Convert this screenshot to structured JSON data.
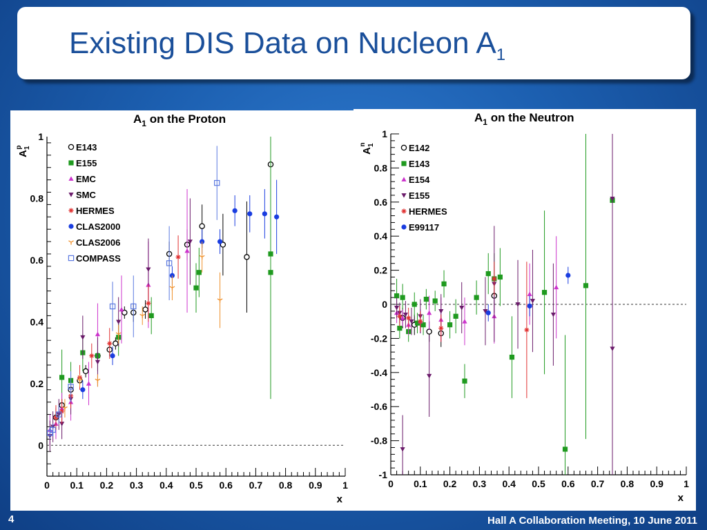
{
  "slide": {
    "title_main": "Existing DIS Data on Nucleon A",
    "title_sub": "1",
    "slide_number": "4",
    "footer": "Hall A Collaboration Meeting, 10 June 2011"
  },
  "colors": {
    "background": "#1c5fb0",
    "title_text": "#1a4f9a"
  },
  "chart_data": [
    {
      "type": "scatter",
      "title": "A1 on the Proton",
      "title_main": "A",
      "title_sub": "1",
      "title_rest": " on the Proton",
      "xlabel": "x",
      "ylabel": "A1p",
      "ylabel_main": "A",
      "ylabel_sub": "1",
      "ylabel_sup": "p",
      "xlim": [
        0,
        1
      ],
      "ylim": [
        -0.1,
        1.0
      ],
      "xticks": [
        "0",
        "0.1",
        "0.2",
        "0.3",
        "0.4",
        "0.5",
        "0.6",
        "0.7",
        "0.8",
        "0.9",
        "1"
      ],
      "yticks": [
        {
          "v": 0,
          "label": "0"
        },
        {
          "v": 0.2,
          "label": "0.2"
        },
        {
          "v": 0.4,
          "label": "0.4"
        },
        {
          "v": 0.6,
          "label": "0.6"
        },
        {
          "v": 0.8,
          "label": "0.8"
        },
        {
          "v": 1,
          "label": "1"
        }
      ],
      "reference_line": 0,
      "legend_position": "top-left",
      "series": [
        {
          "name": "E143",
          "marker": "circle-open",
          "color": "#000000",
          "points": [
            [
              0.03,
              0.09,
              0.03
            ],
            [
              0.05,
              0.13,
              0.02
            ],
            [
              0.08,
              0.18,
              0.02
            ],
            [
              0.11,
              0.21,
              0.02
            ],
            [
              0.13,
              0.24,
              0.02
            ],
            [
              0.17,
              0.29,
              0.02
            ],
            [
              0.21,
              0.31,
              0.02
            ],
            [
              0.23,
              0.33,
              0.02
            ],
            [
              0.26,
              0.43,
              0.02
            ],
            [
              0.29,
              0.43,
              0.03
            ],
            [
              0.33,
              0.44,
              0.03
            ],
            [
              0.41,
              0.62,
              0.04
            ],
            [
              0.47,
              0.65,
              0.05
            ],
            [
              0.52,
              0.71,
              0.07
            ],
            [
              0.59,
              0.65,
              0.1
            ],
            [
              0.67,
              0.61,
              0.18
            ],
            [
              0.75,
              0.91,
              0.25
            ]
          ]
        },
        {
          "name": "E155",
          "marker": "square",
          "color": "#1f9a1f",
          "points": [
            [
              0.05,
              0.22,
              0.09
            ],
            [
              0.08,
              0.21,
              0.06
            ],
            [
              0.12,
              0.3,
              0.06
            ],
            [
              0.17,
              0.29,
              0.05
            ],
            [
              0.24,
              0.35,
              0.06
            ],
            [
              0.35,
              0.42,
              0.06
            ],
            [
              0.5,
              0.51,
              0.08
            ],
            [
              0.51,
              0.56,
              0.08
            ],
            [
              0.75,
              0.62,
              0.47
            ],
            [
              0.75,
              0.56,
              0.3
            ]
          ]
        },
        {
          "name": "EMC",
          "marker": "triangle-up",
          "color": "#cc33cc",
          "points": [
            [
              0.01,
              0.05,
              0.05
            ],
            [
              0.03,
              0.07,
              0.05
            ],
            [
              0.05,
              0.12,
              0.05
            ],
            [
              0.08,
              0.14,
              0.06
            ],
            [
              0.14,
              0.2,
              0.07
            ],
            [
              0.17,
              0.36,
              0.1
            ],
            [
              0.25,
              0.44,
              0.11
            ],
            [
              0.34,
              0.52,
              0.14
            ],
            [
              0.47,
              0.63,
              0.2
            ]
          ]
        },
        {
          "name": "SMC",
          "marker": "triangle-down",
          "color": "#6a1a6a",
          "points": [
            [
              0.01,
              0.03,
              0.05
            ],
            [
              0.02,
              0.06,
              0.05
            ],
            [
              0.04,
              0.1,
              0.05
            ],
            [
              0.05,
              0.07,
              0.05
            ],
            [
              0.08,
              0.15,
              0.05
            ],
            [
              0.12,
              0.35,
              0.07
            ],
            [
              0.17,
              0.27,
              0.08
            ],
            [
              0.24,
              0.4,
              0.08
            ],
            [
              0.34,
              0.57,
              0.1
            ],
            [
              0.48,
              0.66,
              0.14
            ]
          ]
        },
        {
          "name": "HERMES",
          "marker": "star",
          "color": "#e03030",
          "points": [
            [
              0.03,
              0.09,
              0.04
            ],
            [
              0.05,
              0.11,
              0.04
            ],
            [
              0.08,
              0.16,
              0.04
            ],
            [
              0.11,
              0.22,
              0.04
            ],
            [
              0.15,
              0.29,
              0.04
            ],
            [
              0.21,
              0.33,
              0.05
            ],
            [
              0.34,
              0.46,
              0.06
            ],
            [
              0.44,
              0.61,
              0.07
            ]
          ]
        },
        {
          "name": "CLAS2000",
          "marker": "circle",
          "color": "#1a3de0",
          "points": [
            [
              0.12,
              0.18,
              0.03
            ],
            [
              0.22,
              0.29,
              0.03
            ],
            [
              0.42,
              0.55,
              0.03
            ],
            [
              0.52,
              0.66,
              0.04
            ],
            [
              0.58,
              0.66,
              0.04
            ],
            [
              0.63,
              0.76,
              0.05
            ],
            [
              0.68,
              0.75,
              0.06
            ],
            [
              0.73,
              0.75,
              0.08
            ],
            [
              0.77,
              0.74,
              0.12
            ]
          ]
        },
        {
          "name": "CLAS2006",
          "marker": "cross",
          "color": "#f0902a",
          "points": [
            [
              0.06,
              0.12,
              0.03
            ],
            [
              0.11,
              0.21,
              0.02
            ],
            [
              0.17,
              0.21,
              0.02
            ],
            [
              0.24,
              0.36,
              0.03
            ],
            [
              0.32,
              0.42,
              0.03
            ],
            [
              0.42,
              0.51,
              0.04
            ],
            [
              0.52,
              0.61,
              0.05
            ],
            [
              0.58,
              0.47,
              0.09
            ]
          ]
        },
        {
          "name": "COMPASS",
          "marker": "square-open",
          "color": "#5a78e0",
          "points": [
            [
              0.01,
              0.04,
              0.02
            ],
            [
              0.02,
              0.05,
              0.02
            ],
            [
              0.04,
              0.1,
              0.03
            ],
            [
              0.08,
              0.19,
              0.05
            ],
            [
              0.22,
              0.45,
              0.08
            ],
            [
              0.29,
              0.45,
              0.1
            ],
            [
              0.41,
              0.59,
              0.12
            ],
            [
              0.57,
              0.85,
              0.12
            ]
          ]
        }
      ]
    },
    {
      "type": "scatter",
      "title": "A1 on the Neutron",
      "title_main": "A",
      "title_sub": "1",
      "title_rest": " on the Neutron",
      "xlabel": "x",
      "ylabel": "A1n",
      "ylabel_main": "A",
      "ylabel_sub": "1",
      "ylabel_sup": "n",
      "xlim": [
        0,
        1
      ],
      "ylim": [
        -1,
        1
      ],
      "xticks": [
        "0",
        "0.1",
        "0.2",
        "0.3",
        "0.4",
        "0.5",
        "0.6",
        "0.7",
        "0.8",
        "0.9",
        "1"
      ],
      "yticks": [
        {
          "v": -1,
          "label": "-1"
        },
        {
          "v": -0.8,
          "label": "-0.8"
        },
        {
          "v": -0.6,
          "label": "-0.6"
        },
        {
          "v": -0.4,
          "label": "-0.4"
        },
        {
          "v": -0.2,
          "label": "-0.2"
        },
        {
          "v": 0,
          "label": "0"
        },
        {
          "v": 0.2,
          "label": "0.2"
        },
        {
          "v": 0.4,
          "label": "0.4"
        },
        {
          "v": 0.6,
          "label": "0.6"
        },
        {
          "v": 0.8,
          "label": "0.8"
        },
        {
          "v": 1,
          "label": "1"
        }
      ],
      "reference_line": 0,
      "legend_position": "top-left",
      "series": [
        {
          "name": "E142",
          "marker": "circle-open",
          "color": "#000000",
          "points": [
            [
              0.04,
              -0.08,
              0.06
            ],
            [
              0.08,
              -0.12,
              0.06
            ],
            [
              0.13,
              -0.16,
              0.06
            ],
            [
              0.17,
              -0.17,
              0.08
            ],
            [
              0.35,
              0.05,
              0.1
            ]
          ]
        },
        {
          "name": "E143",
          "marker": "square",
          "color": "#1f9a1f",
          "points": [
            [
              0.02,
              0.05,
              0.1
            ],
            [
              0.03,
              -0.14,
              0.06
            ],
            [
              0.04,
              0.04,
              0.08
            ],
            [
              0.06,
              -0.16,
              0.06
            ],
            [
              0.08,
              0.0,
              0.07
            ],
            [
              0.09,
              -0.11,
              0.06
            ],
            [
              0.11,
              -0.12,
              0.06
            ],
            [
              0.12,
              0.03,
              0.06
            ],
            [
              0.15,
              0.02,
              0.06
            ],
            [
              0.18,
              0.12,
              0.08
            ],
            [
              0.2,
              -0.12,
              0.08
            ],
            [
              0.22,
              -0.07,
              0.1
            ],
            [
              0.25,
              -0.45,
              0.1
            ],
            [
              0.29,
              0.04,
              0.1
            ],
            [
              0.33,
              0.18,
              0.12
            ],
            [
              0.35,
              0.15,
              0.15
            ],
            [
              0.37,
              0.16,
              0.17
            ],
            [
              0.41,
              -0.31,
              0.24
            ],
            [
              0.52,
              0.07,
              0.48
            ],
            [
              0.59,
              -0.85,
              0.67
            ],
            [
              0.66,
              0.11,
              0.9
            ],
            [
              0.75,
              0.61,
              0.9
            ]
          ]
        },
        {
          "name": "E154",
          "marker": "triangle-up",
          "color": "#cc33cc",
          "points": [
            [
              0.02,
              -0.05,
              0.06
            ],
            [
              0.04,
              -0.08,
              0.05
            ],
            [
              0.06,
              -0.12,
              0.06
            ],
            [
              0.1,
              -0.1,
              0.07
            ],
            [
              0.13,
              -0.05,
              0.1
            ],
            [
              0.17,
              -0.09,
              0.13
            ],
            [
              0.25,
              -0.1,
              0.14
            ],
            [
              0.35,
              -0.07,
              0.16
            ],
            [
              0.47,
              0.06,
              0.18
            ],
            [
              0.56,
              0.1,
              0.3
            ]
          ]
        },
        {
          "name": "E155",
          "marker": "triangle-down",
          "color": "#6a1a6a",
          "points": [
            [
              0.02,
              -0.02,
              0.06
            ],
            [
              0.03,
              -0.05,
              0.06
            ],
            [
              0.04,
              -0.85,
              0.2
            ],
            [
              0.05,
              -0.06,
              0.08
            ],
            [
              0.07,
              -0.1,
              0.08
            ],
            [
              0.1,
              -0.07,
              0.1
            ],
            [
              0.13,
              -0.42,
              0.24
            ],
            [
              0.17,
              -0.04,
              0.1
            ],
            [
              0.24,
              -0.02,
              0.15
            ],
            [
              0.32,
              -0.04,
              0.2
            ],
            [
              0.35,
              0.12,
              0.34
            ],
            [
              0.43,
              0.0,
              0.26
            ],
            [
              0.48,
              0.02,
              0.3
            ],
            [
              0.55,
              -0.06,
              0.3
            ],
            [
              0.75,
              0.62,
              0.88
            ],
            [
              0.75,
              -0.26,
              0.9
            ]
          ]
        },
        {
          "name": "HERMES",
          "marker": "star",
          "color": "#e03030",
          "points": [
            [
              0.03,
              -0.07,
              0.06
            ],
            [
              0.06,
              -0.08,
              0.06
            ],
            [
              0.1,
              -0.1,
              0.06
            ],
            [
              0.17,
              -0.14,
              0.08
            ],
            [
              0.35,
              0.15,
              0.1
            ],
            [
              0.46,
              -0.15,
              0.4
            ]
          ]
        },
        {
          "name": "E99117",
          "marker": "circle",
          "color": "#1a3de0",
          "points": [
            [
              0.33,
              -0.05,
              0.05
            ],
            [
              0.47,
              -0.01,
              0.06
            ],
            [
              0.6,
              0.17,
              0.05
            ]
          ]
        }
      ]
    }
  ]
}
